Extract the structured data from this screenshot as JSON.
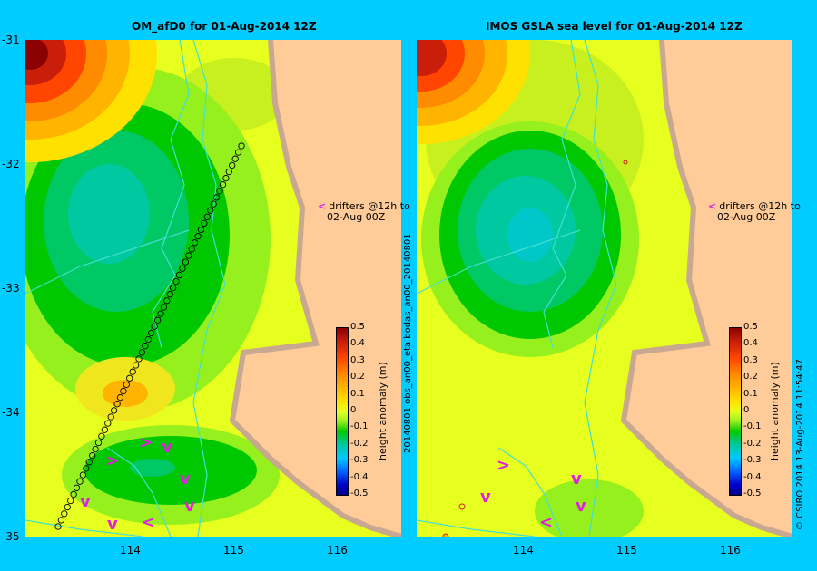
{
  "panels": {
    "left": {
      "title": "OM_afD0 for 01-Aug-2014 12Z"
    },
    "right": {
      "title": "IMOS GSLA sea level  for 01-Aug-2014 12Z"
    }
  },
  "y_ticks": [
    "-31",
    "-32",
    "-33",
    "-34",
    "-35"
  ],
  "x_ticks_left": [
    "114",
    "115",
    "116"
  ],
  "x_ticks_right": [
    "114",
    "115",
    "116"
  ],
  "drifters_label": {
    "line1": "drifters @12h to",
    "line2": "02-Aug 00Z",
    "arrow": "<"
  },
  "colorbar": {
    "title": "height anomaly (m)",
    "labels": [
      "0.5",
      "0.4",
      "0.3",
      "0.2",
      "0.1",
      "0",
      "-0.1",
      "-0.2",
      "-0.3",
      "-0.4",
      "-0.5"
    ]
  },
  "side_labels": {
    "left": "20140801 obs_an00_eta    bodas_an00_20140801",
    "right": "© CSIRO 2014   13-Aug-2014 11:54:47"
  },
  "colors": {
    "background": "#00ccff",
    "land": "#ffcc99",
    "coast": "#c8a890",
    "river": "#40e0d0",
    "drifter_arrow": "#e020e0"
  }
}
